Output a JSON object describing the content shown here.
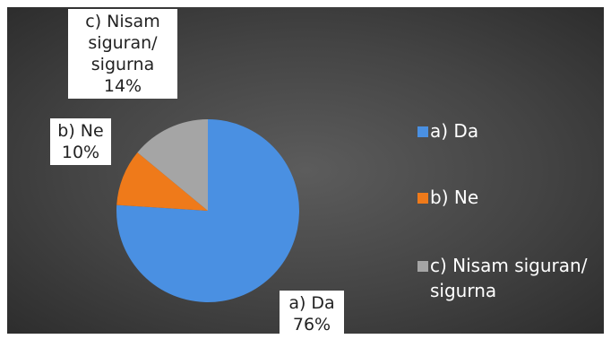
{
  "chart_data": {
    "type": "pie",
    "title": "",
    "categories": [
      "a)  Da",
      "b) Ne",
      "c) Nisam siguran/ sigurna"
    ],
    "values": [
      76,
      10,
      14
    ],
    "unit": "%",
    "colors": [
      "#4a90e2",
      "#ef7a1a",
      "#a5a5a5"
    ],
    "data_labels": [
      {
        "label": "a)  Da",
        "value": "76%"
      },
      {
        "label": "b) Ne",
        "value": "10%"
      },
      {
        "label": "c) Nisam siguran/ sigurna",
        "value": "14%"
      }
    ],
    "legend_position": "right",
    "background": "#4a4a4a"
  },
  "labels": {
    "a_line1": "a)  Da",
    "a_line2": "76%",
    "b_line1": "b) Ne",
    "b_line2": "10%",
    "c_line1": "c) Nisam",
    "c_line2": "siguran/",
    "c_line3": "sigurna",
    "c_line4": "14%"
  },
  "legend": [
    {
      "label": "a)  Da"
    },
    {
      "label": "b) Ne"
    },
    {
      "label": "c) Nisam siguran/ sigurna"
    }
  ]
}
